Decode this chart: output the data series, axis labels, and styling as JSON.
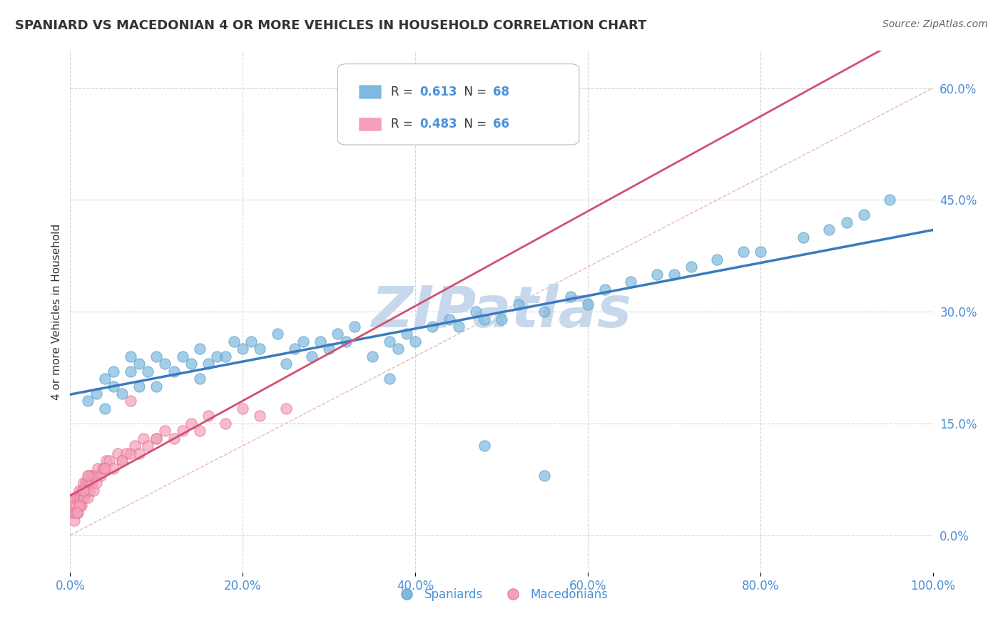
{
  "title": "SPANIARD VS MACEDONIAN 4 OR MORE VEHICLES IN HOUSEHOLD CORRELATION CHART",
  "source_text": "Source: ZipAtlas.com",
  "ylabel": "4 or more Vehicles in Household",
  "xlim": [
    0,
    100
  ],
  "ylim": [
    -5,
    65
  ],
  "xtick_labels": [
    "0.0%",
    "20.0%",
    "40.0%",
    "60.0%",
    "80.0%",
    "100.0%"
  ],
  "xtick_vals": [
    0,
    20,
    40,
    60,
    80,
    100
  ],
  "ytick_labels": [
    "0.0%",
    "15.0%",
    "30.0%",
    "45.0%",
    "60.0%"
  ],
  "ytick_vals": [
    0,
    15,
    30,
    45,
    60
  ],
  "r_spaniard": "0.613",
  "n_spaniard": "68",
  "r_macedonian": "0.483",
  "n_macedonian": "66",
  "spaniard_color": "#7db9e0",
  "macedonian_color": "#f4a0b8",
  "spaniard_edge": "#5a9fc0",
  "macedonian_edge": "#e07090",
  "trend_line_color_sp": "#3a7abf",
  "trend_line_color_mac": "#d05070",
  "diag_line_color": "#e8b0b0",
  "watermark": "ZIPatlas",
  "watermark_color": "#c8d8ec",
  "background_color": "#ffffff",
  "grid_color": "#d0d0d0",
  "text_color": "#333333",
  "axis_label_color": "#4a90d9",
  "legend_text_color": "#333333",
  "legend_value_color": "#4a90d9",
  "spaniard_x": [
    2,
    3,
    4,
    4,
    5,
    5,
    6,
    7,
    7,
    8,
    8,
    9,
    10,
    10,
    11,
    12,
    13,
    14,
    15,
    15,
    16,
    17,
    18,
    19,
    20,
    21,
    22,
    24,
    25,
    26,
    27,
    28,
    29,
    30,
    31,
    32,
    33,
    35,
    37,
    38,
    39,
    40,
    42,
    44,
    45,
    47,
    48,
    50,
    52,
    55,
    58,
    60,
    62,
    65,
    68,
    70,
    72,
    75,
    78,
    80,
    85,
    88,
    90,
    92,
    95,
    37,
    48,
    55
  ],
  "spaniard_y": [
    18,
    19,
    17,
    21,
    20,
    22,
    19,
    22,
    24,
    20,
    23,
    22,
    20,
    24,
    23,
    22,
    24,
    23,
    25,
    21,
    23,
    24,
    24,
    26,
    25,
    26,
    25,
    27,
    23,
    25,
    26,
    24,
    26,
    25,
    27,
    26,
    28,
    24,
    26,
    25,
    27,
    26,
    28,
    29,
    28,
    30,
    29,
    29,
    31,
    30,
    32,
    31,
    33,
    34,
    35,
    35,
    36,
    37,
    38,
    38,
    40,
    41,
    42,
    43,
    45,
    21,
    12,
    8
  ],
  "macedonian_x": [
    0.2,
    0.3,
    0.5,
    0.5,
    0.6,
    0.7,
    0.8,
    0.9,
    1.0,
    1.0,
    1.1,
    1.2,
    1.3,
    1.4,
    1.5,
    1.5,
    1.6,
    1.7,
    1.8,
    1.9,
    2.0,
    2.0,
    2.1,
    2.2,
    2.3,
    2.4,
    2.5,
    2.6,
    2.7,
    2.8,
    3.0,
    3.2,
    3.5,
    3.8,
    4.0,
    4.2,
    4.5,
    5.0,
    5.5,
    6.0,
    6.5,
    7.0,
    7.5,
    8.0,
    8.5,
    9.0,
    10.0,
    11.0,
    12.0,
    13.0,
    14.0,
    15.0,
    16.0,
    18.0,
    20.0,
    22.0,
    25.0,
    7.0,
    4.0,
    2.0,
    1.5,
    1.0,
    0.8,
    3.0,
    6.0,
    10.0
  ],
  "macedonian_y": [
    3,
    4,
    5,
    2,
    3,
    4,
    5,
    3,
    5,
    6,
    4,
    5,
    4,
    6,
    5,
    7,
    5,
    6,
    7,
    6,
    7,
    5,
    8,
    6,
    7,
    8,
    7,
    8,
    6,
    8,
    8,
    9,
    8,
    9,
    9,
    10,
    10,
    9,
    11,
    10,
    11,
    11,
    12,
    11,
    13,
    12,
    13,
    14,
    13,
    14,
    15,
    14,
    16,
    15,
    17,
    16,
    17,
    18,
    9,
    8,
    6,
    4,
    3,
    7,
    10,
    13
  ]
}
